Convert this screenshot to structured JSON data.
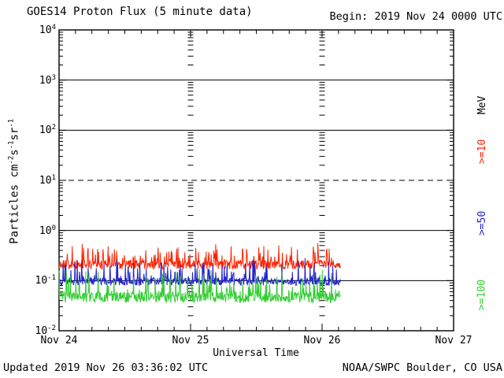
{
  "header": {
    "title": "GOES14 Proton Flux (5 minute data)",
    "begin_label": "Begin: 2019 Nov 24 0000 UTC"
  },
  "footer": {
    "updated": "Updated 2019 Nov 26 03:36:02 UTC",
    "organization": "NOAA/SWPC Boulder, CO USA"
  },
  "chart_data": {
    "type": "line",
    "title": "GOES14 Proton Flux (5 minute data)",
    "xlabel": "Universal Time",
    "ylabel_text": "Particles cm-2s-1sr-1",
    "ylabel_segments": [
      {
        "text": "Particles cm"
      },
      {
        "sup": "-2"
      },
      {
        "text": "s"
      },
      {
        "sup": "-1"
      },
      {
        "text": "sr"
      },
      {
        "sup": "-1"
      }
    ],
    "y_scale": "log",
    "ylim": [
      0.01,
      10000
    ],
    "y_tick_base": "10",
    "y_tick_exponents": [
      4,
      3,
      2,
      1,
      0,
      -1,
      -2
    ],
    "solid_gridline_exponents": [
      3,
      2,
      0,
      -1
    ],
    "dashed_gridline_exponents": [
      1
    ],
    "threshold_flux_dashed": 10,
    "x_tick_labels": [
      "Nov 24",
      "Nov 25",
      "Nov 26",
      "Nov 27"
    ],
    "x_range_days": 3,
    "minor_time_ticks_per_day": 8,
    "day_boundary_marker": "log-minor-tick-column",
    "data_start_day": 0,
    "data_end_day": 2.14,
    "data_end_time": "2019 Nov 26 ~0330 UTC",
    "legend_position": "right-edge-rotated",
    "right_axis_unit": "MeV",
    "series": [
      {
        "name": ">=10",
        "energy": ">=10 MeV",
        "color": "#ff2200",
        "baseline_flux": 0.21,
        "baseline_log10": -0.68,
        "jitter_log10": 0.09,
        "spike_log10": 0.36,
        "spike_probability": 0.22,
        "flux_range": [
          0.13,
          0.55
        ]
      },
      {
        "name": ">=50",
        "energy": ">=50 MeV",
        "color": "#2222cc",
        "baseline_flux": 0.1,
        "baseline_log10": -1.02,
        "jitter_log10": 0.08,
        "spike_log10": 0.42,
        "spike_probability": 0.18,
        "flux_range": [
          0.06,
          0.3
        ]
      },
      {
        "name": ">=100",
        "energy": ">=100 MeV",
        "color": "#33cc33",
        "baseline_flux": 0.047,
        "baseline_log10": -1.33,
        "jitter_log10": 0.11,
        "spike_log10": 0.5,
        "spike_probability": 0.2,
        "flux_range": [
          0.03,
          0.2
        ]
      }
    ],
    "axis_color": "#000000",
    "background_color": "#ffffff"
  }
}
